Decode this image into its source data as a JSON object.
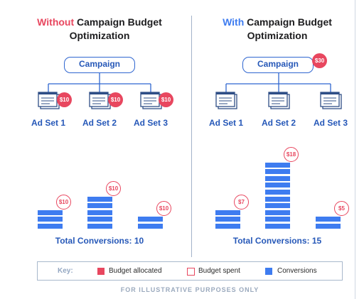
{
  "left": {
    "title_highlight": "Without",
    "title_line1_rest": " Campaign Budget",
    "title_line2": "Optimization",
    "campaign_label": "Campaign",
    "adsets": [
      {
        "label": "Ad Set 1",
        "budget_allocated": "$10",
        "budget_spent": "$10",
        "conversions": 3
      },
      {
        "label": "Ad Set 2",
        "budget_allocated": "$10",
        "budget_spent": "$10",
        "conversions": 5
      },
      {
        "label": "Ad Set 3",
        "budget_allocated": "$10",
        "budget_spent": "$10",
        "conversions": 2
      }
    ],
    "total": "Total Conversions: 10"
  },
  "right": {
    "title_highlight": "With",
    "title_line1_rest": " Campaign Budget",
    "title_line2": "Optimization",
    "campaign_label": "Campaign",
    "campaign_budget": "$30",
    "adsets": [
      {
        "label": "Ad Set 1",
        "budget_spent": "$7",
        "conversions": 3
      },
      {
        "label": "Ad Set 2",
        "budget_spent": "$18",
        "conversions": 10
      },
      {
        "label": "Ad Set 3",
        "budget_spent": "$5",
        "conversions": 2
      }
    ],
    "total": "Total Conversions: 15"
  },
  "key": {
    "label": "Key:",
    "items": [
      "Budget allocated",
      "Budget spent",
      "Conversions"
    ]
  },
  "footer": "FOR ILLUSTRATIVE PURPOSES ONLY",
  "colors": {
    "red": "#e8475f",
    "blue": "#3e7cf0",
    "dark_blue": "#2658b8"
  }
}
